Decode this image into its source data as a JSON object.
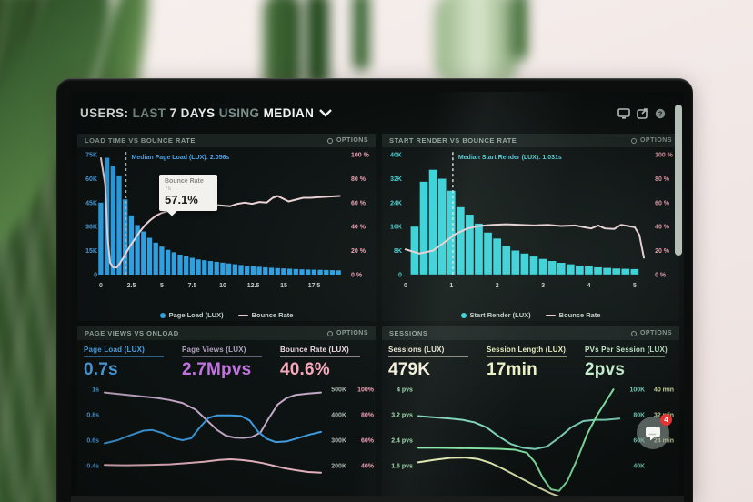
{
  "header": {
    "t1": "USERS:",
    "t2": "LAST",
    "t3": "7 DAYS",
    "t4": "USING",
    "t5": "MEDIAN"
  },
  "chat": {
    "badge": "4"
  },
  "panels": {
    "load_time": {
      "title": "LOAD TIME VS BOUNCE RATE",
      "options": "OPTIONS",
      "median_label": "Median Page Load (LUX): 2.056s",
      "tooltip": {
        "title": "Bounce Rate",
        "sub": "7s",
        "value": "57.1%"
      },
      "y_left": [
        "75K",
        "60K",
        "45K",
        "30K",
        "15K",
        "0"
      ],
      "y_right": [
        "100 %",
        "80 %",
        "60 %",
        "40 %",
        "20 %",
        "0 %"
      ],
      "x_ticks": [
        "0",
        "2.5",
        "5",
        "7.5",
        "10",
        "12.5",
        "15",
        "17.5"
      ],
      "legend_bar": "Page Load (LUX)",
      "legend_line": "Bounce Rate"
    },
    "start_render": {
      "title": "START RENDER VS BOUNCE RATE",
      "options": "OPTIONS",
      "median_label": "Median Start Render (LUX): 1.031s",
      "y_left": [
        "40K",
        "32K",
        "24K",
        "16K",
        "8K",
        "0"
      ],
      "y_right": [
        "100 %",
        "80 %",
        "60 %",
        "40 %",
        "20 %",
        "0 %"
      ],
      "x_ticks": [
        "0",
        "1",
        "2",
        "3",
        "4",
        "5"
      ],
      "legend_bar": "Start Render (LUX)",
      "legend_line": "Bounce Rate"
    },
    "page_views": {
      "title": "PAGE VIEWS VS ONLOAD",
      "options": "OPTIONS",
      "metrics": [
        {
          "label": "Page Load (LUX)",
          "value": "0.7s",
          "label_color": "#4da4e8",
          "value_color": "#4da4e8",
          "line_color": "#4da4e8"
        },
        {
          "label": "Page Views (LUX)",
          "value": "2.7Mpvs",
          "label_color": "#b4a3c2",
          "value_color": "#c273e2",
          "line_color": "#b4a3c2"
        },
        {
          "label": "Bounce Rate (LUX)",
          "value": "40.6%",
          "label_color": "#f2dce2",
          "value_color": "#f7a8bd",
          "line_color": "#f2dce2"
        }
      ],
      "rows_left": [
        "1s",
        "0.8s",
        "0.6s",
        "0.4s"
      ],
      "rows_right": [
        [
          "500K",
          "100%"
        ],
        [
          "400K",
          "80%"
        ],
        [
          "300K",
          "60%"
        ],
        [
          "200K",
          "40%"
        ]
      ]
    },
    "sessions": {
      "title": "SESSIONS",
      "options": "OPTIONS",
      "metrics": [
        {
          "label": "Sessions (LUX)",
          "value": "479K",
          "label_color": "#f2eddc",
          "value_color": "#f5f0dd",
          "line_color": "#f2eddc"
        },
        {
          "label": "Session Length (LUX)",
          "value": "17min",
          "label_color": "#eaf0c2",
          "value_color": "#eef3c6",
          "line_color": "#eaf0c2"
        },
        {
          "label": "PVs Per Session (LUX)",
          "value": "2pvs",
          "label_color": "#c5ecce",
          "value_color": "#c9f0d2",
          "line_color": "#c5ecce"
        }
      ],
      "rows_left": [
        "4 pvs",
        "3.2 pvs",
        "2.4 pvs",
        "1.6 pvs"
      ],
      "rows_right": [
        [
          "100K",
          "40 min"
        ],
        [
          "80K",
          "32 min"
        ],
        [
          "60K",
          "24 min"
        ],
        [
          "40K",
          ""
        ]
      ]
    }
  },
  "chart_data": [
    {
      "type": "bar",
      "panel": "load_time",
      "title": "LOAD TIME VS BOUNCE RATE",
      "x_range": [
        0,
        20
      ],
      "bin_start": 0,
      "bin_width": 0.5,
      "y_left_max_k": 75,
      "x_tick_values": [
        0,
        2.5,
        5,
        7.5,
        10,
        12.5,
        15,
        17.5
      ],
      "bar_color": "#2f9fe0",
      "line_color": "#ead2d6",
      "median_color": "#4da4e8",
      "median_dash_color": "#a7b2ae",
      "axis_left_color": "#4da4e8",
      "axis_right_color": "#ef9fb4",
      "tick_color": "#c4cfc9",
      "median_x": 2.056,
      "bars_k": [
        45,
        73,
        68,
        62,
        47,
        37,
        31,
        27,
        23,
        20,
        17.5,
        15.5,
        14,
        12.5,
        11.5,
        10.5,
        9.5,
        9,
        8.5,
        8,
        7.5,
        7,
        6.5,
        6,
        5.5,
        5.2,
        4.9,
        4.6,
        4.3,
        4.1,
        3.9,
        3.7,
        3.5,
        3.3,
        3.2,
        3.1,
        3.0,
        2.9,
        2.8,
        2.7
      ],
      "bounce_pct": [
        [
          0,
          97
        ],
        [
          0.35,
          75
        ],
        [
          0.55,
          30
        ],
        [
          0.75,
          10
        ],
        [
          1,
          6
        ],
        [
          1.3,
          6
        ],
        [
          1.6,
          10
        ],
        [
          2,
          17
        ],
        [
          2.4,
          24
        ],
        [
          2.8,
          30
        ],
        [
          3.2,
          36
        ],
        [
          3.6,
          41
        ],
        [
          4,
          45
        ],
        [
          4.5,
          49
        ],
        [
          5,
          51.5
        ],
        [
          5.5,
          53
        ],
        [
          6,
          54.5
        ],
        [
          6.5,
          56
        ],
        [
          7,
          57.1
        ],
        [
          7.6,
          56.5
        ],
        [
          8.2,
          57
        ],
        [
          8.8,
          57.5
        ],
        [
          9.4,
          58
        ],
        [
          10,
          57.5
        ],
        [
          10.6,
          57
        ],
        [
          11.2,
          59
        ],
        [
          11.8,
          60
        ],
        [
          12.4,
          59
        ],
        [
          13,
          60.5
        ],
        [
          13.6,
          60
        ],
        [
          14.1,
          64
        ],
        [
          14.5,
          65.5
        ],
        [
          15,
          63
        ],
        [
          15.4,
          61
        ],
        [
          16,
          62.5
        ],
        [
          16.6,
          64
        ],
        [
          17.2,
          64
        ],
        [
          17.8,
          64.5
        ],
        [
          18.6,
          65
        ],
        [
          19.6,
          65.5
        ]
      ],
      "tooltip_point": [
        7,
        57.1
      ]
    },
    {
      "type": "bar",
      "panel": "start_render",
      "title": "START RENDER VS BOUNCE RATE",
      "x_range": [
        0,
        5.3
      ],
      "bin_start": 0.2,
      "bin_width": 0.2,
      "y_left_max_k": 40,
      "x_tick_values": [
        0,
        1,
        2,
        3,
        4,
        5
      ],
      "bar_color": "#38d3da",
      "line_color": "#ead2d6",
      "median_color": "#53c9d6",
      "median_dash_color": "#dfe7e4",
      "axis_left_color": "#45cfd6",
      "axis_right_color": "#ef9fb4",
      "tick_color": "#c4cfc9",
      "median_x": 1.031,
      "bars_k": [
        16,
        31,
        35,
        32,
        28,
        22.5,
        20,
        17,
        14,
        12,
        9.5,
        8,
        7,
        6,
        5.2,
        4.5,
        3.9,
        3.4,
        3.0,
        2.7,
        2.4,
        2.2,
        2.0,
        1.9,
        1.8
      ],
      "bounce_pct": [
        [
          0,
          21
        ],
        [
          0.3,
          17.5
        ],
        [
          0.6,
          20
        ],
        [
          0.85,
          27
        ],
        [
          1.1,
          34
        ],
        [
          1.35,
          38.5
        ],
        [
          1.6,
          40.5
        ],
        [
          1.9,
          41.5
        ],
        [
          2.2,
          42
        ],
        [
          2.5,
          41.5
        ],
        [
          2.8,
          41
        ],
        [
          3.1,
          41.5
        ],
        [
          3.4,
          40.5
        ],
        [
          3.7,
          41
        ],
        [
          3.9,
          39.5
        ],
        [
          4.05,
          38.5
        ],
        [
          4.2,
          41
        ],
        [
          4.35,
          38.5
        ],
        [
          4.55,
          38
        ],
        [
          4.7,
          41.5
        ],
        [
          4.85,
          40.5
        ],
        [
          5,
          39.5
        ],
        [
          5.1,
          33
        ],
        [
          5.2,
          14
        ]
      ]
    },
    {
      "type": "line",
      "panel": "page_views",
      "title": "PAGE VIEWS VS ONLOAD",
      "axis_left_color": "#4da4e8",
      "axis_r1_color": "#aab8b0",
      "axis_r2_color": "#ef9fb4",
      "series": [
        {
          "name": "Page Views (K)",
          "color": "#c2a8c6",
          "row_values": [
            500,
            400,
            300,
            200
          ],
          "points": [
            [
              0,
              487
            ],
            [
              0.08,
              480
            ],
            [
              0.16,
              473
            ],
            [
              0.24,
              466
            ],
            [
              0.3,
              458
            ],
            [
              0.36,
              446
            ],
            [
              0.42,
              420
            ],
            [
              0.47,
              380
            ],
            [
              0.52,
              340
            ],
            [
              0.56,
              318
            ],
            [
              0.6,
              310
            ],
            [
              0.64,
              309
            ],
            [
              0.68,
              312
            ],
            [
              0.72,
              330
            ],
            [
              0.76,
              388
            ],
            [
              0.8,
              440
            ],
            [
              0.84,
              465
            ],
            [
              0.88,
              477
            ],
            [
              0.94,
              483
            ],
            [
              1,
              487
            ]
          ]
        },
        {
          "name": "Page Load (s)",
          "color": "#3f9be0",
          "row_values": [
            1,
            0.8,
            0.6,
            0.4
          ],
          "points": [
            [
              0,
              0.575
            ],
            [
              0.06,
              0.6
            ],
            [
              0.12,
              0.64
            ],
            [
              0.18,
              0.675
            ],
            [
              0.22,
              0.68
            ],
            [
              0.27,
              0.655
            ],
            [
              0.32,
              0.615
            ],
            [
              0.36,
              0.6
            ],
            [
              0.4,
              0.615
            ],
            [
              0.44,
              0.7
            ],
            [
              0.48,
              0.775
            ],
            [
              0.52,
              0.795
            ],
            [
              0.58,
              0.795
            ],
            [
              0.63,
              0.79
            ],
            [
              0.67,
              0.755
            ],
            [
              0.71,
              0.665
            ],
            [
              0.75,
              0.61
            ],
            [
              0.79,
              0.585
            ],
            [
              0.84,
              0.59
            ],
            [
              0.89,
              0.615
            ],
            [
              0.95,
              0.645
            ],
            [
              1,
              0.665
            ]
          ]
        },
        {
          "name": "Bounce Rate (%)",
          "color": "#eeb9c6",
          "row_values": [
            100,
            80,
            60,
            40
          ],
          "points": [
            [
              0,
              40.5
            ],
            [
              0.1,
              40.3
            ],
            [
              0.2,
              40.5
            ],
            [
              0.3,
              41
            ],
            [
              0.38,
              42
            ],
            [
              0.46,
              43
            ],
            [
              0.53,
              44.5
            ],
            [
              0.58,
              45
            ],
            [
              0.63,
              44.5
            ],
            [
              0.68,
              43.5
            ],
            [
              0.73,
              42
            ],
            [
              0.78,
              40
            ],
            [
              0.83,
              38
            ],
            [
              0.88,
              36.5
            ],
            [
              0.94,
              35
            ],
            [
              1,
              34.5
            ]
          ]
        }
      ]
    },
    {
      "type": "line",
      "panel": "sessions",
      "title": "SESSIONS",
      "axis_left_color": "#a5dcb2",
      "axis_r1_color": "#7fd8c2",
      "axis_r2_color": "#dde8ad",
      "series": [
        {
          "name": "Sessions (K)",
          "color": "#7fd4bc",
          "row_values": [
            100,
            80,
            60,
            40
          ],
          "points": [
            [
              0,
              79
            ],
            [
              0.08,
              78
            ],
            [
              0.16,
              77
            ],
            [
              0.22,
              76
            ],
            [
              0.28,
              74
            ],
            [
              0.34,
              70
            ],
            [
              0.4,
              63
            ],
            [
              0.46,
              57
            ],
            [
              0.52,
              54
            ],
            [
              0.58,
              53
            ],
            [
              0.64,
              55
            ],
            [
              0.7,
              62
            ],
            [
              0.76,
              70
            ],
            [
              0.82,
              75
            ],
            [
              0.88,
              76
            ],
            [
              0.93,
              76
            ],
            [
              1,
              77
            ]
          ]
        },
        {
          "name": "PVs Per Session (pvs)",
          "color": "#86e8a6",
          "row_values": [
            4,
            3.2,
            2.4,
            1.6
          ],
          "points": [
            [
              0,
              2.16
            ],
            [
              0.1,
              2.16
            ],
            [
              0.2,
              2.15
            ],
            [
              0.3,
              2.14
            ],
            [
              0.4,
              2.13
            ],
            [
              0.48,
              2.1
            ],
            [
              0.54,
              2.0
            ],
            [
              0.58,
              1.7
            ],
            [
              0.62,
              1.2
            ],
            [
              0.66,
              0.85
            ],
            [
              0.7,
              0.8
            ],
            [
              0.74,
              1.1
            ],
            [
              0.79,
              1.8
            ],
            [
              0.84,
              2.6
            ],
            [
              0.89,
              3.2
            ],
            [
              0.94,
              3.7
            ],
            [
              0.97,
              4.0
            ]
          ]
        },
        {
          "name": "Session Length (min)",
          "color": "#e6ecb4",
          "row_values": [
            40,
            32,
            24,
            16
          ],
          "points": [
            [
              0,
              17
            ],
            [
              0.08,
              17.8
            ],
            [
              0.16,
              18.4
            ],
            [
              0.24,
              18.5
            ],
            [
              0.3,
              18
            ],
            [
              0.36,
              16.8
            ],
            [
              0.42,
              15
            ],
            [
              0.48,
              13
            ],
            [
              0.54,
              11
            ],
            [
              0.6,
              9
            ],
            [
              0.66,
              7.2
            ],
            [
              0.72,
              5.8
            ]
          ]
        }
      ]
    }
  ]
}
